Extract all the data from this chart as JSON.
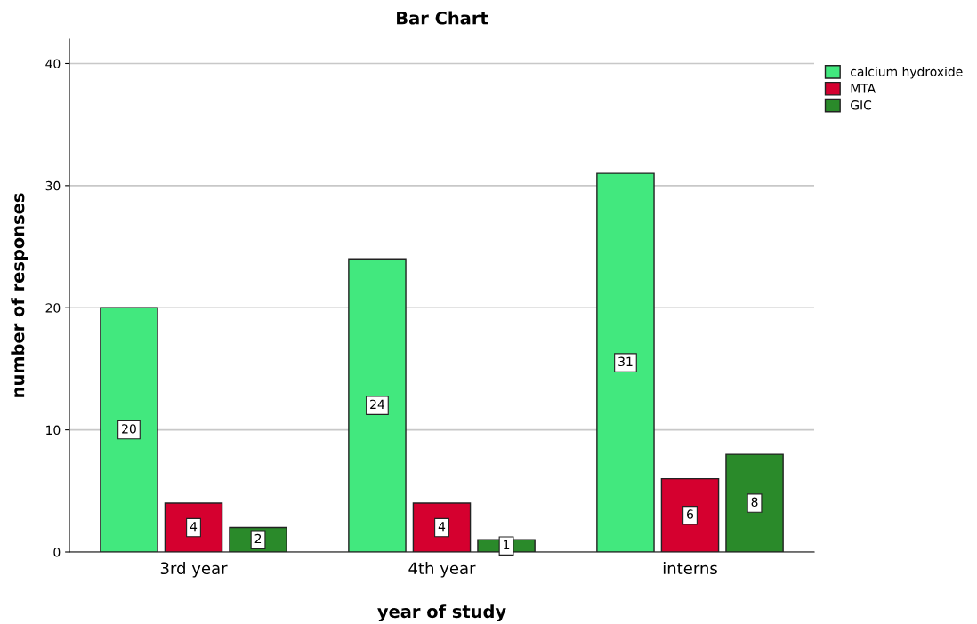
{
  "chart_data": {
    "type": "bar",
    "title": "Bar Chart",
    "xlabel": "year of study",
    "ylabel": "number of responses",
    "categories": [
      "3rd year",
      "4th year",
      "interns"
    ],
    "series": [
      {
        "name": "calcium hydroxide",
        "color": "#42e87e",
        "values": [
          20,
          24,
          31
        ]
      },
      {
        "name": "MTA",
        "color": "#d5002f",
        "values": [
          4,
          4,
          6
        ]
      },
      {
        "name": "GIC",
        "color": "#2a8a2a",
        "values": [
          2,
          1,
          8
        ]
      }
    ],
    "ylim": [
      0,
      42
    ],
    "yticks": [
      0,
      10,
      20,
      30,
      40
    ],
    "grid": "y",
    "legend": "top right",
    "data_labels": true
  }
}
